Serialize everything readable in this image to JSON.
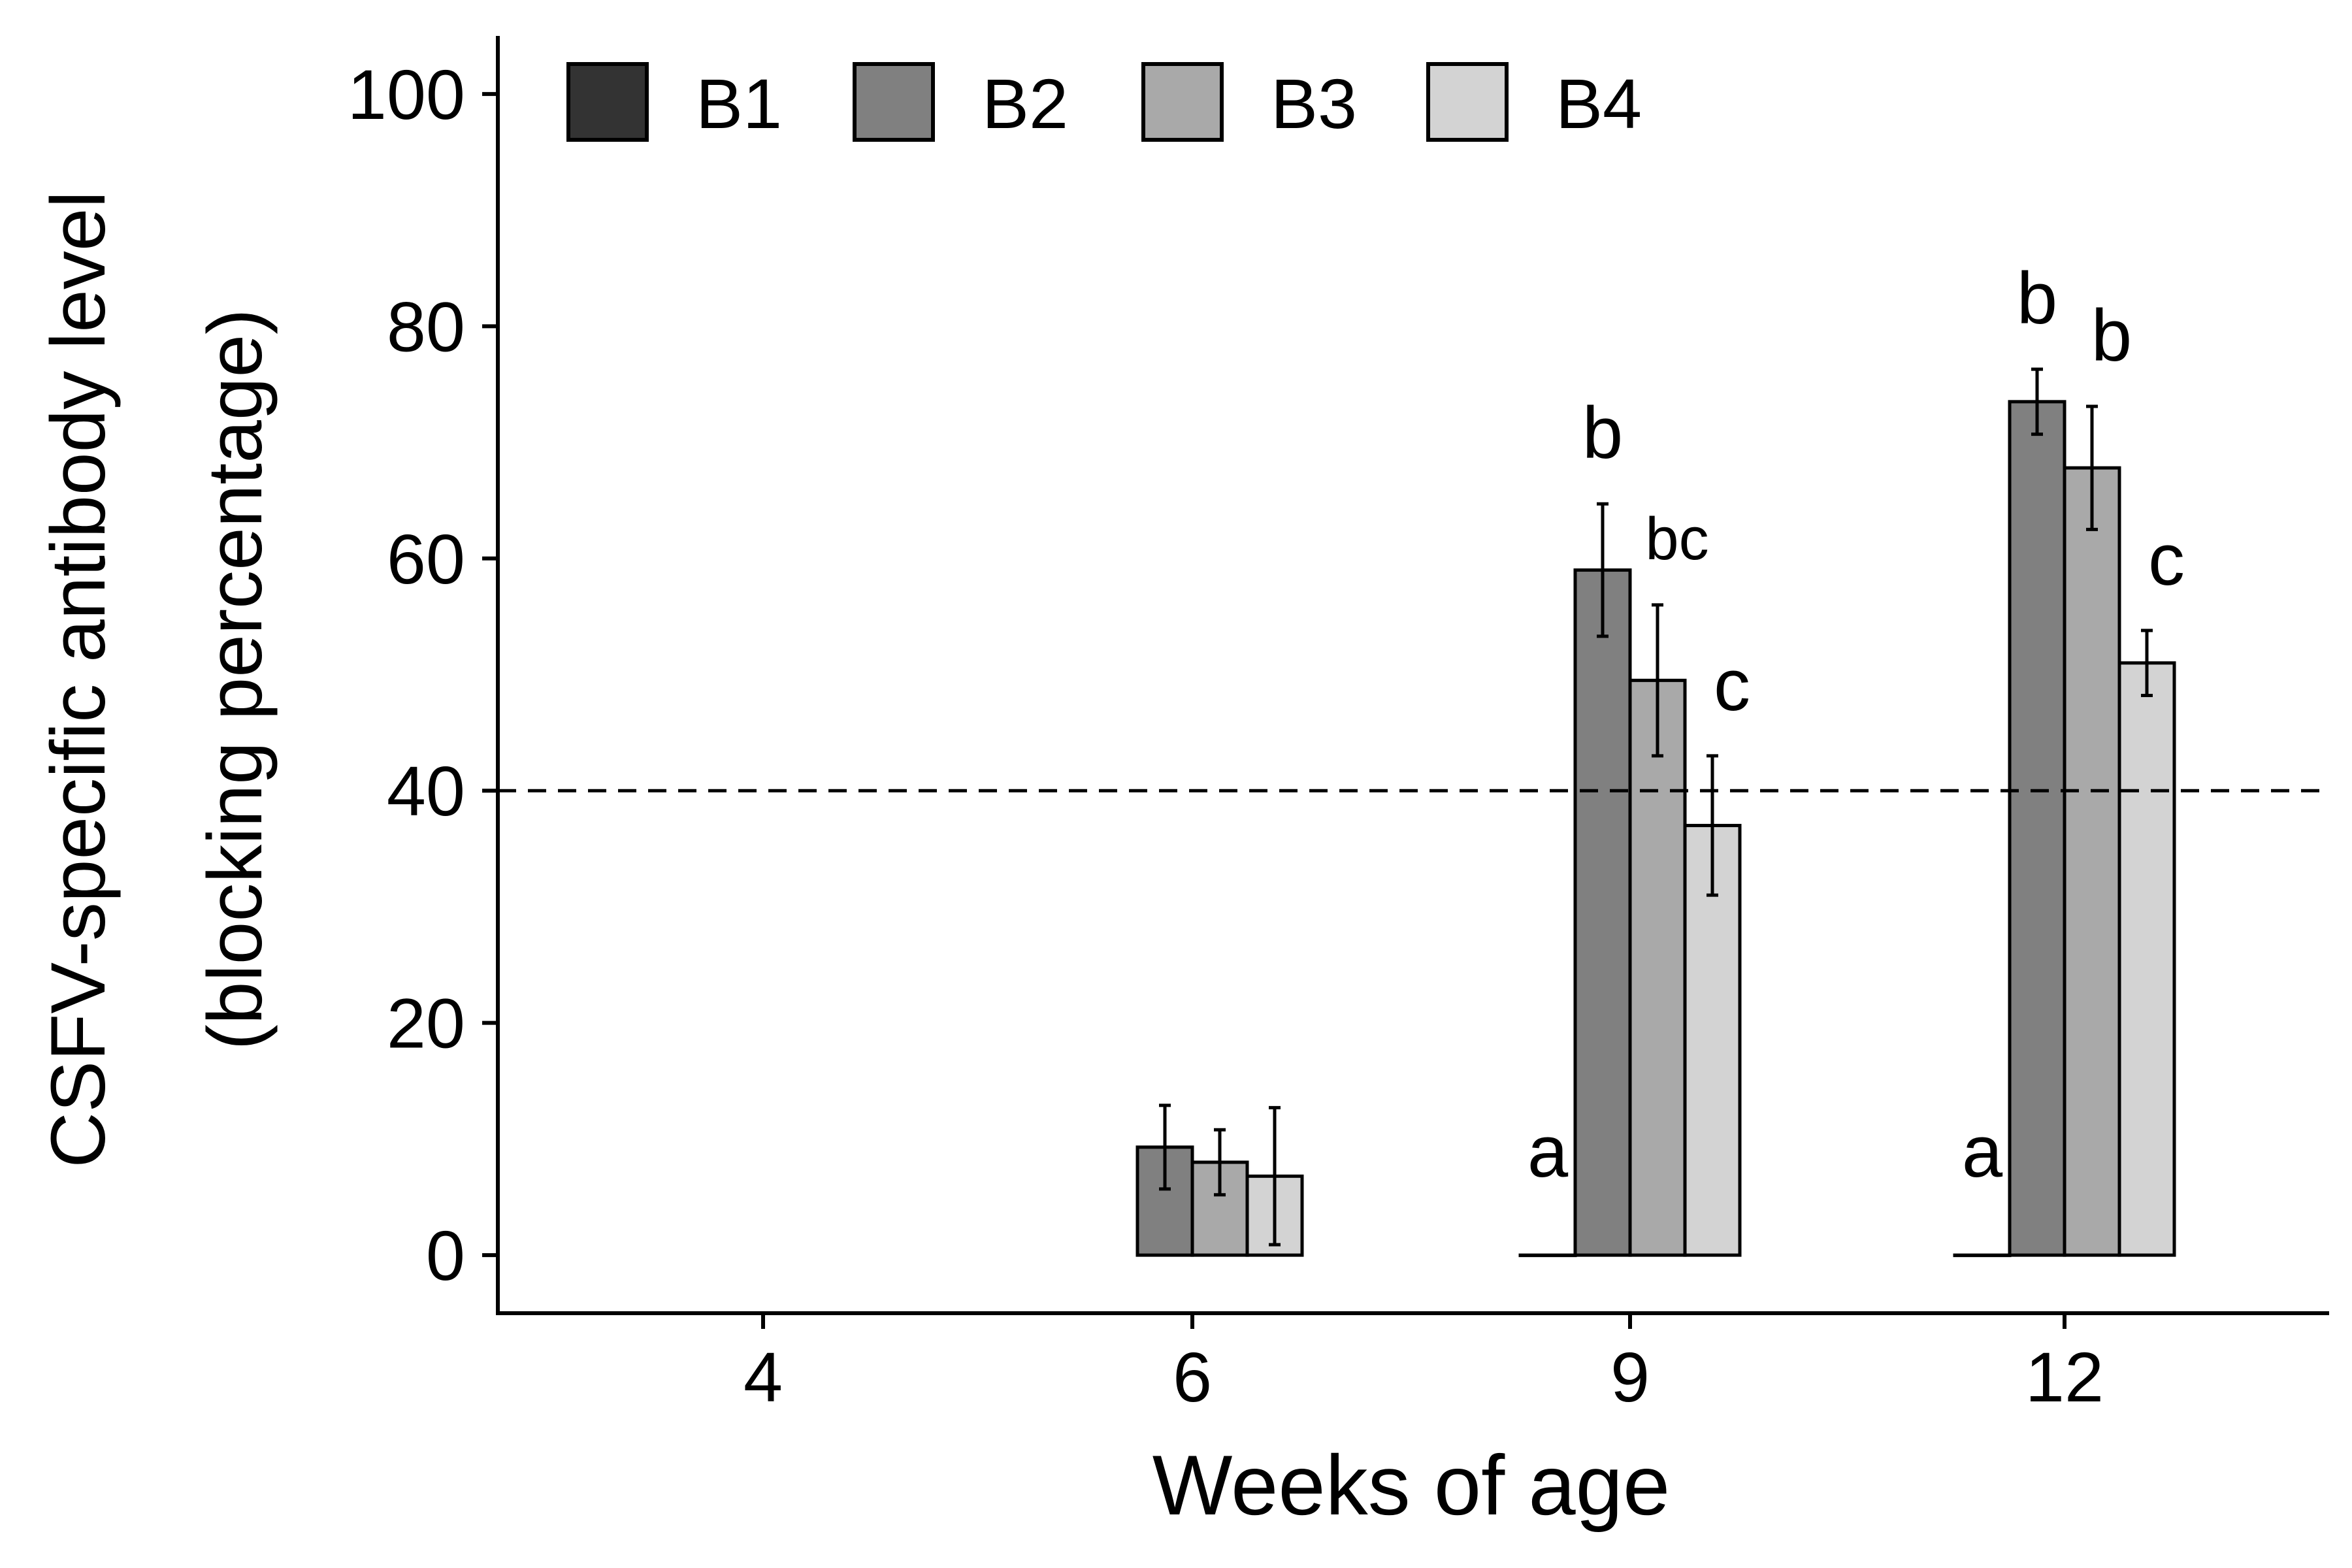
{
  "chart_data": {
    "type": "bar",
    "xlabel": "Weeks of age",
    "ylabel_lines": [
      "CSFV-specific antibody level",
      "(blocking percentage)"
    ],
    "categories": [
      "4",
      "6",
      "9",
      "12"
    ],
    "yticks": [
      "0",
      "20",
      "40",
      "60",
      "80",
      "100"
    ],
    "ylim": [
      -5,
      105
    ],
    "reference_line": {
      "y": 40,
      "style": "dashed"
    },
    "legend_placement": "top-left",
    "grid": false,
    "series": [
      {
        "name": "B1",
        "color": "#333333",
        "values": [
          null,
          null,
          0,
          0
        ],
        "errors": [
          null,
          null,
          null,
          null
        ],
        "labels": [
          "",
          "",
          "a",
          "a"
        ]
      },
      {
        "name": "B2",
        "color": "#808080",
        "values": [
          null,
          9.3,
          59,
          73.5
        ],
        "errors": [
          null,
          3.6,
          5.7,
          2.8
        ],
        "labels": [
          "",
          "",
          "b",
          "b"
        ]
      },
      {
        "name": "B3",
        "color": "#a9a9a9",
        "values": [
          null,
          8,
          49.5,
          67.8
        ],
        "errors": [
          null,
          2.8,
          6.5,
          5.3
        ],
        "labels": [
          "",
          "",
          "bc",
          "b"
        ]
      },
      {
        "name": "B4",
        "color": "#d3d3d3",
        "values": [
          null,
          6.8,
          37,
          51
        ],
        "errors": [
          null,
          5.9,
          6,
          2.8
        ],
        "labels": [
          "",
          "",
          "c",
          "c"
        ]
      }
    ]
  }
}
